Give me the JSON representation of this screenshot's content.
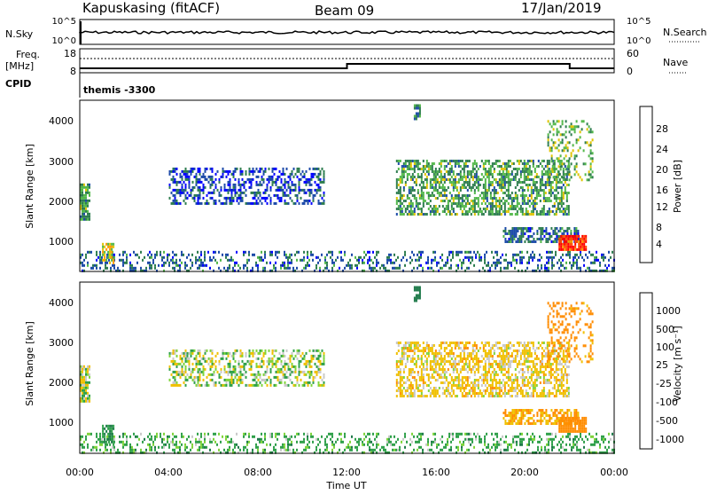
{
  "header": {
    "title": "Kapuskasing (fitACF)",
    "beam": "Beam 09",
    "date": "17/Jan/2019"
  },
  "nsky_panel": {
    "left_label": "N.Sky",
    "left_ticks": [
      "10^5",
      "10^0"
    ],
    "right_ticks": [
      "10^5",
      "10^0"
    ],
    "right_label": "N.Search"
  },
  "freq_panel": {
    "left_label_1": "Freq.",
    "left_label_2": "[MHz]",
    "left_ticks": [
      "18",
      "8"
    ],
    "right_ticks": [
      "60",
      "0"
    ],
    "right_label": "Nave",
    "cpid_label": "CPID",
    "cpid_value": "themis -3300"
  },
  "power_panel": {
    "ylabel": "Slant Range [km]",
    "yticks": [
      "4000",
      "3000",
      "2000",
      "1000"
    ],
    "colorbar_label": "Power [dB]",
    "colorbar_ticks": [
      "28",
      "24",
      "20",
      "16",
      "12",
      "8",
      "4"
    ],
    "colors": [
      "#0000ff",
      "#1c4aa8",
      "#2e7d4f",
      "#52b84a",
      "#e0c400",
      "#ff9a00",
      "#ff4a00",
      "#ff0000"
    ]
  },
  "velocity_panel": {
    "ylabel": "Slant Range [km]",
    "yticks": [
      "4000",
      "3000",
      "2000",
      "1000"
    ],
    "colorbar_label": "Velocity [m s⁻¹]",
    "colorbar_ticks": [
      "1000",
      "500",
      "100",
      "25",
      "-25",
      "-100",
      "-500",
      "-1000"
    ],
    "colors": [
      "#1f3fbf",
      "#1f7a4a",
      "#2fa04a",
      "#7fd43a",
      "#c8c8c8",
      "#f0c000",
      "#ff8c00",
      "#ff4000",
      "#ff0000"
    ]
  },
  "xaxis": {
    "ticks": [
      "00:00",
      "04:00",
      "08:00",
      "12:00",
      "16:00",
      "20:00",
      "00:00"
    ],
    "label": "Time UT"
  },
  "chart_data": {
    "type": "heatmap",
    "x_range_hours": [
      0,
      24
    ],
    "y_range_km": [
      180,
      4500
    ],
    "freq_mhz": [
      {
        "start_hour": 0,
        "end_hour": 12,
        "value": 10.5
      },
      {
        "start_hour": 12,
        "end_hour": 22,
        "value": 13
      },
      {
        "start_hour": 22,
        "end_hour": 24,
        "value": 10.5
      }
    ],
    "echo_regions": [
      {
        "t_start": 0.0,
        "t_end": 24.0,
        "r_start": 180,
        "r_end": 700,
        "power_db": 8,
        "velocity": 50,
        "density": 0.3
      },
      {
        "t_start": 0.0,
        "t_end": 0.4,
        "r_start": 1500,
        "r_end": 2400,
        "power_db": 12,
        "velocity": 0,
        "density": 0.8
      },
      {
        "t_start": 1.0,
        "t_end": 1.5,
        "r_start": 400,
        "r_end": 900,
        "power_db": 18,
        "velocity": 100,
        "density": 0.6
      },
      {
        "t_start": 4.0,
        "t_end": 11.0,
        "r_start": 1900,
        "r_end": 2800,
        "power_db": 6,
        "velocity": 0,
        "density": 0.45
      },
      {
        "t_start": 14.2,
        "t_end": 22.0,
        "r_start": 1600,
        "r_end": 3000,
        "power_db": 12,
        "velocity": -50,
        "density": 0.55
      },
      {
        "t_start": 15.0,
        "t_end": 15.3,
        "r_start": 4000,
        "r_end": 4400,
        "power_db": 10,
        "velocity": 200,
        "density": 0.8
      },
      {
        "t_start": 19.0,
        "t_end": 22.5,
        "r_start": 900,
        "r_end": 1300,
        "power_db": 8,
        "velocity": -100,
        "density": 0.6
      },
      {
        "t_start": 21.5,
        "t_end": 22.7,
        "r_start": 700,
        "r_end": 1100,
        "power_db": 28,
        "velocity": -200,
        "density": 0.9
      },
      {
        "t_start": 21.0,
        "t_end": 23.0,
        "r_start": 2500,
        "r_end": 4000,
        "power_db": 14,
        "velocity": -150,
        "density": 0.3
      }
    ]
  }
}
